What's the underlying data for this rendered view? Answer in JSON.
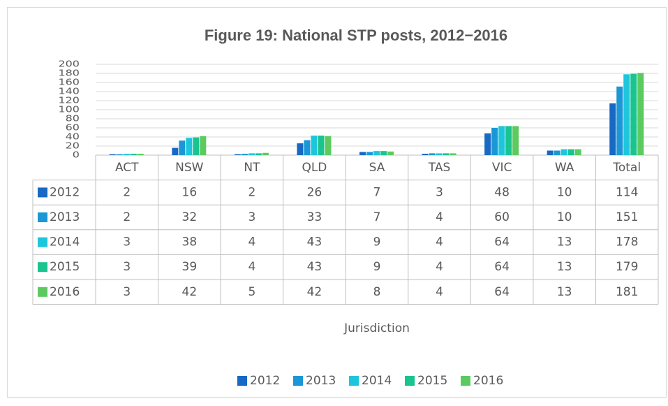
{
  "chart_data": {
    "type": "bar",
    "title": "Figure 19: National STP posts, 2012−2016",
    "x_label": "Jurisdiction",
    "categories": [
      "ACT",
      "NSW",
      "NT",
      "QLD",
      "SA",
      "TAS",
      "VIC",
      "WA",
      "Total"
    ],
    "series": [
      {
        "name": "2012",
        "color": "#1769c4",
        "values": [
          2,
          16,
          2,
          26,
          7,
          3,
          48,
          10,
          114
        ]
      },
      {
        "name": "2013",
        "color": "#1b97d5",
        "values": [
          2,
          32,
          3,
          33,
          7,
          4,
          60,
          10,
          151
        ]
      },
      {
        "name": "2014",
        "color": "#1ec6dd",
        "values": [
          3,
          38,
          4,
          43,
          9,
          4,
          64,
          13,
          178
        ]
      },
      {
        "name": "2015",
        "color": "#19c48f",
        "values": [
          3,
          39,
          4,
          43,
          9,
          4,
          64,
          13,
          179
        ]
      },
      {
        "name": "2016",
        "color": "#5dca60",
        "values": [
          3,
          42,
          5,
          42,
          8,
          4,
          64,
          13,
          181
        ]
      }
    ],
    "ylim": [
      0,
      200
    ],
    "yticks": [
      0,
      20,
      40,
      60,
      80,
      100,
      120,
      140,
      160,
      180,
      200
    ],
    "grid": true,
    "legend": "bottom"
  }
}
